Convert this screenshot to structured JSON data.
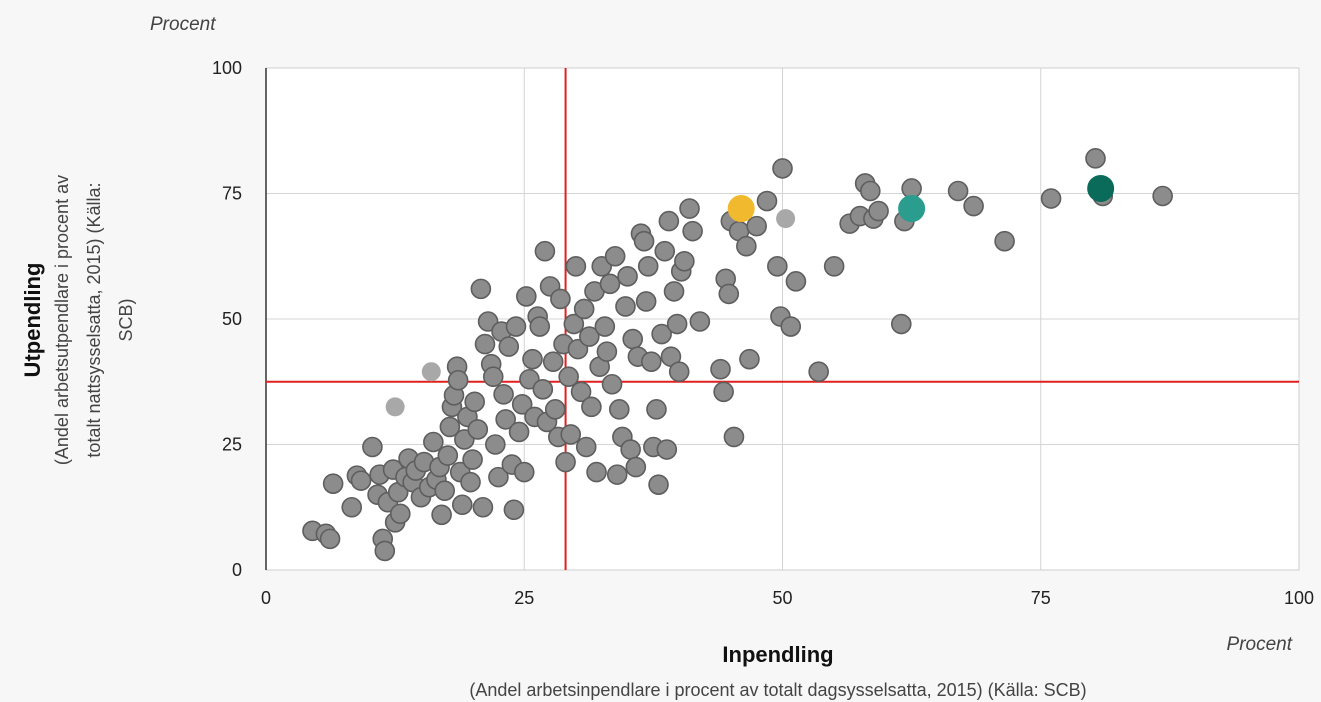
{
  "chart_data": {
    "type": "scatter",
    "x_unit": "Procent",
    "y_unit": "Procent",
    "xlabel": "Inpendling",
    "xlabel_sub": "(Andel arbetsinpendlare i procent av totalt dagsysselsatta, 2015) (Källa: SCB)",
    "ylabel": "Utpendling",
    "ylabel_sub_lines": [
      "(Andel arbetsutpendlare i procent av",
      "totalt nattsysselsatta, 2015) (Källa:",
      "SCB)"
    ],
    "xlim": [
      0,
      100
    ],
    "ylim": [
      0,
      100
    ],
    "x_ticks": [
      "0",
      "25",
      "50",
      "75",
      "100"
    ],
    "y_ticks": [
      "0",
      "25",
      "50",
      "75",
      "100"
    ],
    "grid": true,
    "reference_lines": {
      "x": 29,
      "y": 37.5,
      "color": "#e02020"
    },
    "colors": {
      "default": "#8c8c8c",
      "light": "#a8a8a8",
      "yellow": "#f0b92e",
      "teal": "#2a9d8f",
      "dark_green": "#0b6b5a"
    },
    "points": [
      [
        4.5,
        7.8
      ],
      [
        5.8,
        7.2
      ],
      [
        6.2,
        6.2
      ],
      [
        6.5,
        17.2
      ],
      [
        8.3,
        12.5
      ],
      [
        8.8,
        18.8
      ],
      [
        9.2,
        17.8
      ],
      [
        10.3,
        24.5
      ],
      [
        10.8,
        15.0
      ],
      [
        11.0,
        19.0
      ],
      [
        11.3,
        6.2
      ],
      [
        11.5,
        3.8
      ],
      [
        11.8,
        13.5
      ],
      [
        12.3,
        20.0
      ],
      [
        12.5,
        9.5
      ],
      [
        12.8,
        15.5
      ],
      [
        13.0,
        11.2
      ],
      [
        13.5,
        18.5
      ],
      [
        13.8,
        22.2
      ],
      [
        14.2,
        17.5
      ],
      [
        14.5,
        19.8
      ],
      [
        15.0,
        14.5
      ],
      [
        15.3,
        21.5
      ],
      [
        15.8,
        16.5
      ],
      [
        16.2,
        25.5
      ],
      [
        16.5,
        18.0
      ],
      [
        16.8,
        20.5
      ],
      [
        17.0,
        11.0
      ],
      [
        17.3,
        15.8
      ],
      [
        17.6,
        22.8
      ],
      [
        17.8,
        28.5
      ],
      [
        18.0,
        32.5
      ],
      [
        18.2,
        34.8
      ],
      [
        18.5,
        40.5
      ],
      [
        18.6,
        37.8
      ],
      [
        18.8,
        19.5
      ],
      [
        19.0,
        13.0
      ],
      [
        19.2,
        26.0
      ],
      [
        19.5,
        30.5
      ],
      [
        19.8,
        17.5
      ],
      [
        20.0,
        22.0
      ],
      [
        20.2,
        33.5
      ],
      [
        20.5,
        28.0
      ],
      [
        20.8,
        56.0
      ],
      [
        21.0,
        12.5
      ],
      [
        21.2,
        45.0
      ],
      [
        21.5,
        49.5
      ],
      [
        21.8,
        41.0
      ],
      [
        22.0,
        38.5
      ],
      [
        22.2,
        25.0
      ],
      [
        22.5,
        18.5
      ],
      [
        22.8,
        47.5
      ],
      [
        23.0,
        35.0
      ],
      [
        23.2,
        30.0
      ],
      [
        23.5,
        44.5
      ],
      [
        23.8,
        21.0
      ],
      [
        24.0,
        12.0
      ],
      [
        24.2,
        48.5
      ],
      [
        24.5,
        27.5
      ],
      [
        24.8,
        33.0
      ],
      [
        25.0,
        19.5
      ],
      [
        25.2,
        54.5
      ],
      [
        25.5,
        38.0
      ],
      [
        25.8,
        42.0
      ],
      [
        26.0,
        30.5
      ],
      [
        26.3,
        50.5
      ],
      [
        26.5,
        48.5
      ],
      [
        26.8,
        36.0
      ],
      [
        27.0,
        63.5
      ],
      [
        27.2,
        29.5
      ],
      [
        27.5,
        56.5
      ],
      [
        27.8,
        41.5
      ],
      [
        28.0,
        32.0
      ],
      [
        28.3,
        26.5
      ],
      [
        28.5,
        54.0
      ],
      [
        28.8,
        45.0
      ],
      [
        29.0,
        21.5
      ],
      [
        29.3,
        38.5
      ],
      [
        29.5,
        27.0
      ],
      [
        29.8,
        49.0
      ],
      [
        30.0,
        60.5
      ],
      [
        30.2,
        44.0
      ],
      [
        30.5,
        35.5
      ],
      [
        30.8,
        52.0
      ],
      [
        31.0,
        24.5
      ],
      [
        31.3,
        46.5
      ],
      [
        31.5,
        32.5
      ],
      [
        31.8,
        55.5
      ],
      [
        32.0,
        19.5
      ],
      [
        32.3,
        40.5
      ],
      [
        32.5,
        60.5
      ],
      [
        32.8,
        48.5
      ],
      [
        33.0,
        43.5
      ],
      [
        33.3,
        57.0
      ],
      [
        33.5,
        37.0
      ],
      [
        33.8,
        62.5
      ],
      [
        34.0,
        19.0
      ],
      [
        34.2,
        32.0
      ],
      [
        34.5,
        26.5
      ],
      [
        34.8,
        52.5
      ],
      [
        35.0,
        58.5
      ],
      [
        35.3,
        24.0
      ],
      [
        35.5,
        46.0
      ],
      [
        35.8,
        20.5
      ],
      [
        36.0,
        42.5
      ],
      [
        36.3,
        67.0
      ],
      [
        36.6,
        65.5
      ],
      [
        36.8,
        53.5
      ],
      [
        37.0,
        60.5
      ],
      [
        37.3,
        41.5
      ],
      [
        37.5,
        24.5
      ],
      [
        37.8,
        32.0
      ],
      [
        38.0,
        17.0
      ],
      [
        38.3,
        47.0
      ],
      [
        38.6,
        63.5
      ],
      [
        38.8,
        24.0
      ],
      [
        39.0,
        69.5
      ],
      [
        39.2,
        42.5
      ],
      [
        39.5,
        55.5
      ],
      [
        39.8,
        49.0
      ],
      [
        40.0,
        39.5
      ],
      [
        40.2,
        59.5
      ],
      [
        40.5,
        61.5
      ],
      [
        41.0,
        72.0
      ],
      [
        41.3,
        67.5
      ],
      [
        42.0,
        49.5
      ],
      [
        44.0,
        40.0
      ],
      [
        44.3,
        35.5
      ],
      [
        44.5,
        58.0
      ],
      [
        44.8,
        55.0
      ],
      [
        45.0,
        69.5
      ],
      [
        45.3,
        26.5
      ],
      [
        45.8,
        67.5
      ],
      [
        46.5,
        64.5
      ],
      [
        46.8,
        42.0
      ],
      [
        47.5,
        68.5
      ],
      [
        48.5,
        73.5
      ],
      [
        49.5,
        60.5
      ],
      [
        49.8,
        50.5
      ],
      [
        50.0,
        80.0
      ],
      [
        50.8,
        48.5
      ],
      [
        51.3,
        57.5
      ],
      [
        53.5,
        39.5
      ],
      [
        55.0,
        60.5
      ],
      [
        56.5,
        69.0
      ],
      [
        57.5,
        70.5
      ],
      [
        58.0,
        77.0
      ],
      [
        58.5,
        75.5
      ],
      [
        58.8,
        70.0
      ],
      [
        59.3,
        71.5
      ],
      [
        61.5,
        49.0
      ],
      [
        61.8,
        69.5
      ],
      [
        62.5,
        76.0
      ],
      [
        67.0,
        75.5
      ],
      [
        68.5,
        72.5
      ],
      [
        71.5,
        65.5
      ],
      [
        76.0,
        74.0
      ],
      [
        80.3,
        82.0
      ],
      [
        81.0,
        74.5
      ],
      [
        86.8,
        74.5
      ]
    ],
    "light_points": [
      [
        12.5,
        32.5
      ],
      [
        16.0,
        39.5
      ],
      [
        50.3,
        70.0
      ]
    ],
    "highlight_points": [
      {
        "x": 46.0,
        "y": 72.0,
        "color": "#f0b92e"
      },
      {
        "x": 62.5,
        "y": 72.0,
        "color": "#2a9d8f"
      },
      {
        "x": 80.8,
        "y": 76.0,
        "color": "#0b6b5a"
      }
    ]
  }
}
